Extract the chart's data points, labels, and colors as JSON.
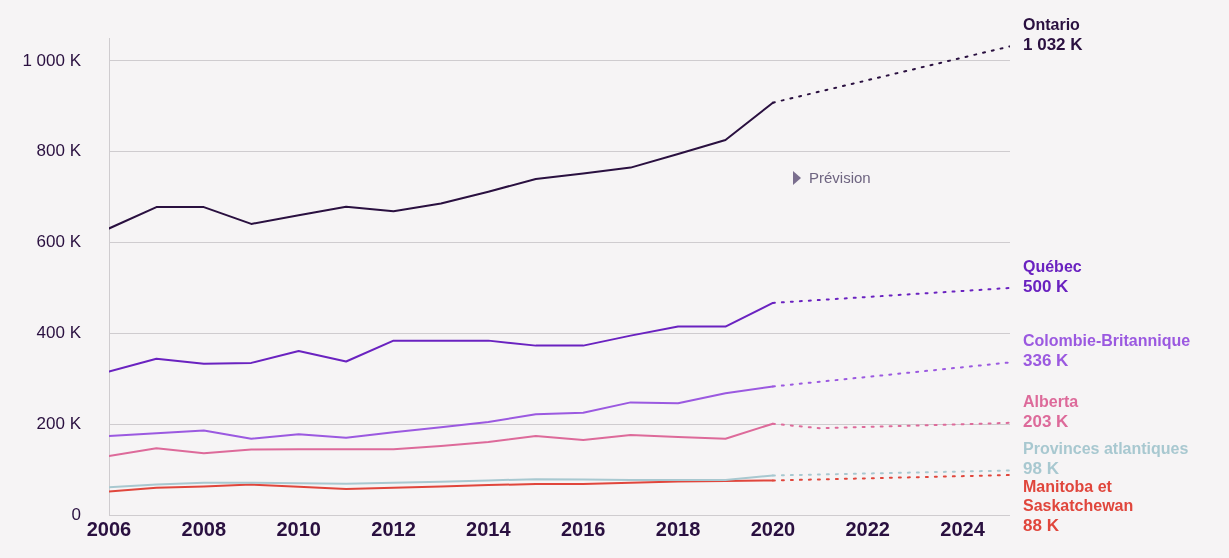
{
  "chart_data": {
    "type": "line",
    "annotations": [
      "Prévision"
    ],
    "xlim": [
      2006,
      2025
    ],
    "xticks": [
      2006,
      2008,
      2010,
      2012,
      2014,
      2016,
      2018,
      2020,
      2022,
      2024
    ],
    "ylim": [
      0,
      1050
    ],
    "yticks": [
      {
        "value": 0,
        "label": "0"
      },
      {
        "value": 200,
        "label": "200 K"
      },
      {
        "value": 400,
        "label": "400 K"
      },
      {
        "value": 600,
        "label": "600 K"
      },
      {
        "value": 800,
        "label": "800 K"
      },
      {
        "value": 1000,
        "label": "1 000 K"
      }
    ],
    "grid": "y",
    "legend": false,
    "marker": "none",
    "series": [
      {
        "color": "#2a1040",
        "line_style": "solid",
        "x": [
          2006,
          2007,
          2008,
          2009,
          2010,
          2011,
          2012,
          2013,
          2014,
          2015,
          2016,
          2017,
          2018,
          2019,
          2020
        ],
        "values": [
          631,
          678,
          678,
          641,
          660,
          679,
          669,
          686,
          712,
          740,
          752,
          765,
          795,
          826,
          908
        ]
      },
      {
        "name": "Ontario",
        "color": "#2a1040",
        "line_style": "dotted",
        "x": [
          2020,
          2025
        ],
        "values": [
          908,
          1032
        ],
        "value_labels": [
          null,
          "1 032 K"
        ]
      },
      {
        "color": "#6a22c0",
        "line_style": "solid",
        "x": [
          2006,
          2007,
          2008,
          2009,
          2010,
          2011,
          2012,
          2013,
          2014,
          2015,
          2016,
          2017,
          2018,
          2019,
          2020
        ],
        "values": [
          316,
          344,
          333,
          335,
          361,
          338,
          384,
          384,
          384,
          373,
          373,
          395,
          415,
          415,
          467
        ]
      },
      {
        "name": "Québec",
        "color": "#6a22c0",
        "line_style": "dotted",
        "x": [
          2020,
          2025
        ],
        "values": [
          467,
          500
        ],
        "value_labels": [
          null,
          "500 K"
        ]
      },
      {
        "color": "#9b59e0",
        "line_style": "solid",
        "x": [
          2006,
          2007,
          2008,
          2009,
          2010,
          2011,
          2012,
          2013,
          2014,
          2015,
          2016,
          2017,
          2018,
          2019,
          2020
        ],
        "values": [
          174,
          180,
          186,
          168,
          178,
          170,
          182,
          193,
          205,
          222,
          225,
          248,
          246,
          268,
          283
        ]
      },
      {
        "name": "Colombie-Britannique",
        "color": "#9b59e0",
        "line_style": "dotted",
        "x": [
          2020,
          2025
        ],
        "values": [
          283,
          336
        ],
        "value_labels": [
          null,
          "336 K"
        ]
      },
      {
        "color": "#dd6a9a",
        "line_style": "solid",
        "x": [
          2006,
          2007,
          2008,
          2009,
          2010,
          2011,
          2012,
          2013,
          2014,
          2015,
          2016,
          2017,
          2018,
          2019,
          2020
        ],
        "values": [
          130,
          147,
          136,
          144,
          145,
          145,
          145,
          152,
          161,
          174,
          165,
          176,
          172,
          168,
          201
        ]
      },
      {
        "name": "Alberta",
        "color": "#dd6a9a",
        "line_style": "dotted",
        "x": [
          2020,
          2021,
          2025
        ],
        "values": [
          201,
          191,
          203
        ],
        "value_labels": [
          null,
          null,
          "203 K"
        ]
      },
      {
        "color": "#a8c8d0",
        "line_style": "solid",
        "x": [
          2006,
          2007,
          2008,
          2009,
          2010,
          2011,
          2012,
          2013,
          2014,
          2015,
          2016,
          2017,
          2018,
          2019,
          2020
        ],
        "values": [
          61,
          67,
          71,
          71,
          70,
          69,
          71,
          73,
          76,
          79,
          78,
          77,
          77,
          77,
          87
        ]
      },
      {
        "name": "Provinces atlantiques",
        "color": "#a8c8d0",
        "line_style": "dotted",
        "x": [
          2020,
          2025
        ],
        "values": [
          87,
          98
        ],
        "value_labels": [
          null,
          "98 K"
        ]
      },
      {
        "color": "#e0463c",
        "line_style": "solid",
        "x": [
          2006,
          2007,
          2008,
          2009,
          2010,
          2011,
          2012,
          2013,
          2014,
          2015,
          2016,
          2017,
          2018,
          2019,
          2020
        ],
        "values": [
          52,
          60,
          63,
          67,
          62,
          57,
          60,
          63,
          66,
          68,
          68,
          71,
          74,
          75,
          76
        ]
      },
      {
        "name": "Manitoba et Saskatchewan",
        "color": "#e0463c",
        "line_style": "dotted",
        "x": [
          2020,
          2025
        ],
        "values": [
          76,
          88
        ],
        "value_labels": [
          null,
          "88 K"
        ]
      }
    ]
  }
}
